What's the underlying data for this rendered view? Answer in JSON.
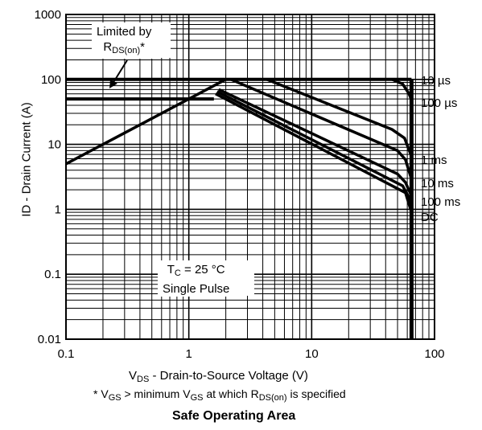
{
  "chart_data": {
    "type": "line",
    "title": "Safe Operating Area",
    "xlabel": {
      "main": "V",
      "sub": "DS",
      "rest": " - Drain-to-Source Voltage (V)"
    },
    "ylabel": "ID - Drain Current (A)",
    "footnote": {
      "p1": "* V",
      "s1": "GS",
      "p2": " > minimum V",
      "s2": "GS",
      "p3": " at which R",
      "s3": "DS(on)",
      "p4": " is specified"
    },
    "x_scale": "log",
    "y_scale": "log",
    "xlim": [
      0.1,
      100
    ],
    "ylim": [
      0.01,
      1000
    ],
    "x_ticks": [
      "0.1",
      "1",
      "10",
      "100"
    ],
    "y_ticks": [
      "1000",
      "100",
      "10",
      "1",
      "0.1",
      "0.01"
    ],
    "grid": true,
    "annotations": {
      "limited_line1": "Limited by",
      "limited_r": "R",
      "limited_sub": "DS(on)",
      "limited_star": "*",
      "cond_t": "T",
      "cond_sub": "C",
      "cond_rest": " = 25 °C",
      "cond_line2": "Single Pulse"
    },
    "series": [
      {
        "name": "10 µs",
        "points": [
          [
            0.1,
            5
          ],
          [
            2.0,
            100
          ],
          [
            45,
            100
          ],
          [
            55,
            85
          ],
          [
            62,
            60
          ],
          [
            65,
            48
          ]
        ]
      },
      {
        "name": "100 µs",
        "points": [
          [
            4.3,
            100
          ],
          [
            45,
            17
          ],
          [
            57,
            12.5
          ],
          [
            65,
            6.5
          ]
        ]
      },
      {
        "name": "1 ms",
        "points": [
          [
            2.2,
            100
          ],
          [
            50,
            8
          ],
          [
            58,
            5.8
          ],
          [
            65,
            2.9
          ]
        ]
      },
      {
        "name": "10 ms",
        "points": [
          [
            1.75,
            70
          ],
          [
            50,
            3.5
          ],
          [
            58,
            2.6
          ],
          [
            65,
            1.6
          ]
        ]
      },
      {
        "name": "100 ms",
        "points": [
          [
            1.7,
            65
          ],
          [
            55,
            2.3
          ],
          [
            65,
            1.3
          ]
        ]
      },
      {
        "name": "DC",
        "points": [
          [
            1.65,
            60
          ],
          [
            58,
            1.8
          ],
          [
            65,
            0.9
          ]
        ]
      }
    ],
    "limits": [
      {
        "name": "pulse-current-limit",
        "points": [
          [
            0.1,
            100
          ],
          [
            65,
            100
          ]
        ]
      },
      {
        "name": "continuous-current-limit",
        "points": [
          [
            0.1,
            50
          ],
          [
            1.6,
            50
          ]
        ]
      },
      {
        "name": "voltage-limit",
        "points": [
          [
            65,
            0.01
          ],
          [
            65,
            100
          ]
        ]
      }
    ]
  }
}
